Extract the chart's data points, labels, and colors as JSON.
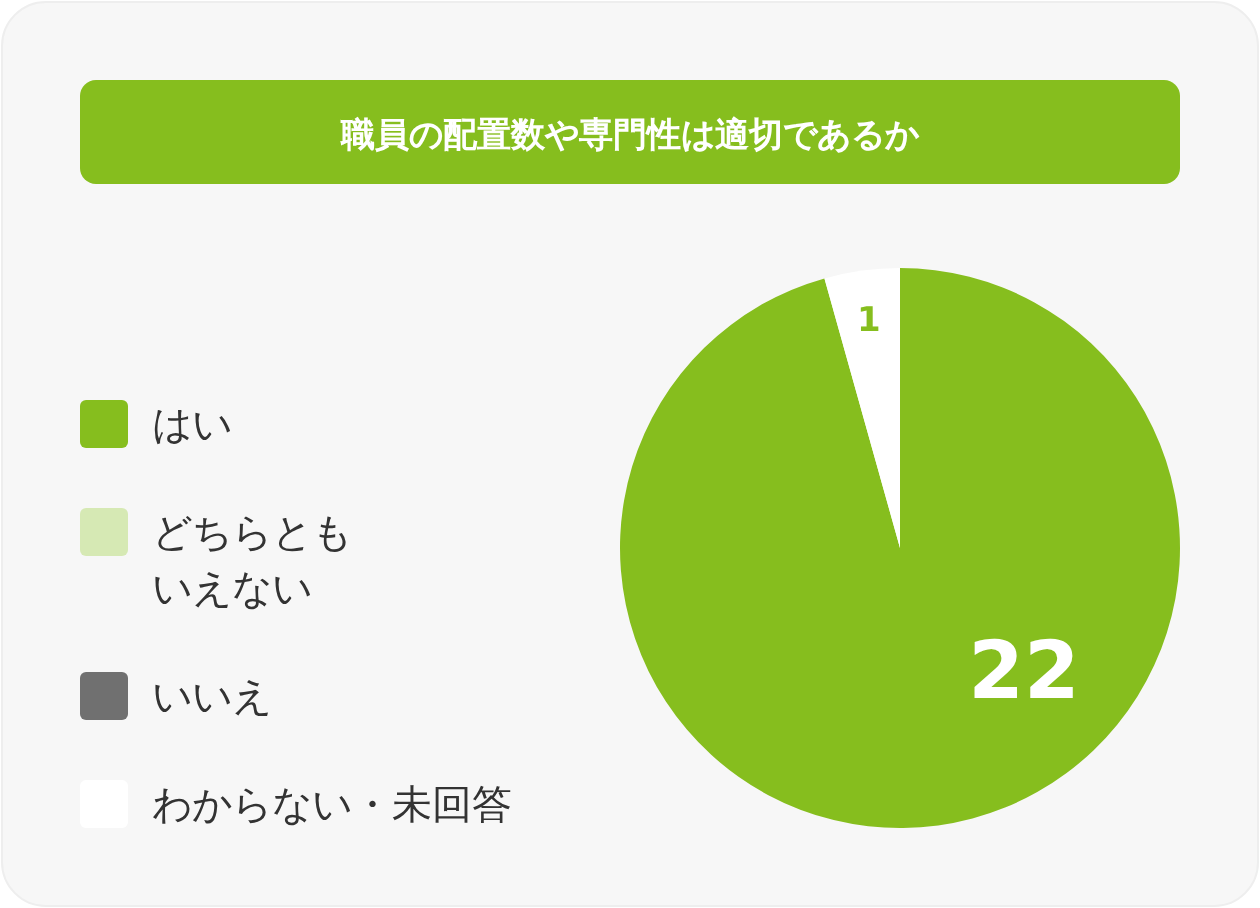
{
  "chart_data": {
    "type": "pie",
    "title": "職員の配置数や専門性は適切であるか",
    "categories": [
      "はい",
      "どちらともいえない",
      "いいえ",
      "わからない・未回答"
    ],
    "values": [
      22,
      0,
      0,
      1
    ],
    "colors": [
      "#86be1e",
      "#d6e9b4",
      "#707070",
      "#ffffff"
    ],
    "value_labels": [
      "22",
      null,
      null,
      "1"
    ],
    "legend": "left"
  }
}
